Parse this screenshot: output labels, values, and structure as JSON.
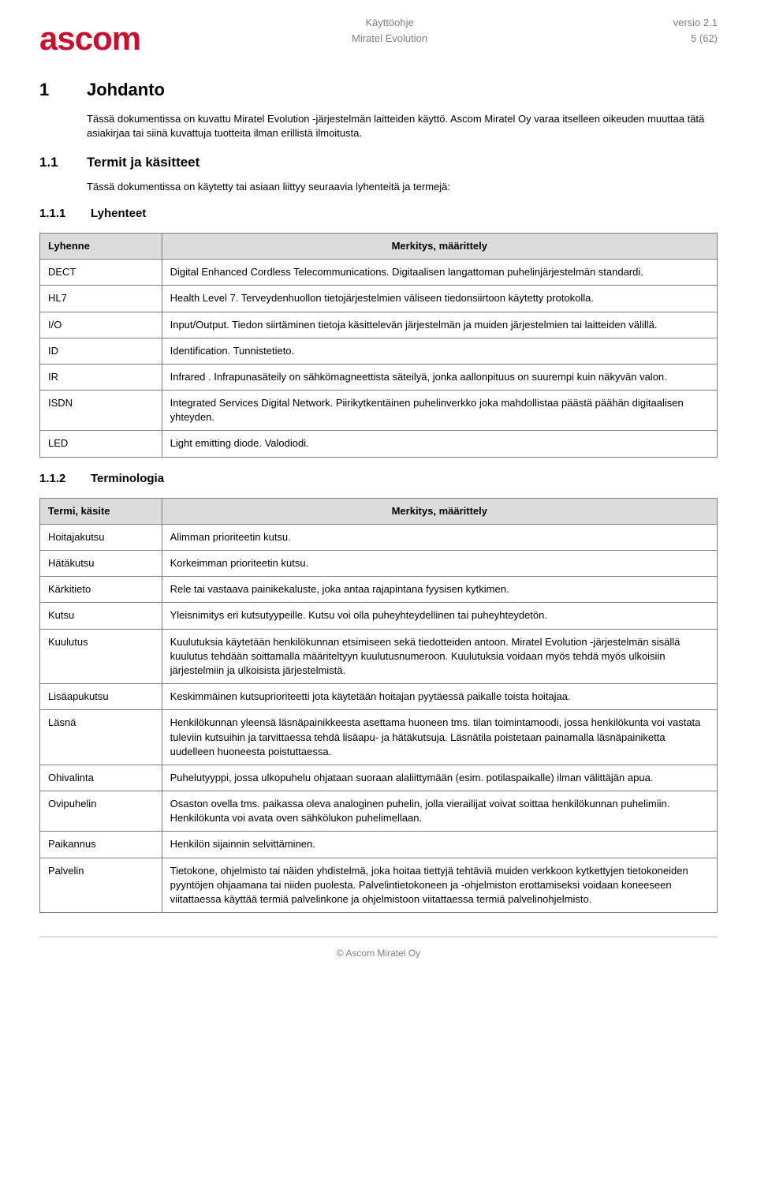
{
  "header": {
    "logo_text": "ascom",
    "doc_type": "Käyttöohje",
    "product": "Miratel Evolution",
    "version": "versio 2.1",
    "page_num": "5 (62)"
  },
  "s1": {
    "num": "1",
    "title": "Johdanto",
    "text": "Tässä dokumentissa on kuvattu Miratel Evolution -järjestelmän laitteiden käyttö. Ascom Miratel Oy varaa itselleen oikeuden muuttaa tätä asiakirjaa tai siinä kuvattuja tuotteita ilman erillistä ilmoitusta."
  },
  "s11": {
    "num": "1.1",
    "title": "Termit ja käsitteet",
    "text": "Tässä dokumentissa on käytetty tai asiaan liittyy seuraavia lyhenteitä ja termejä:"
  },
  "s111": {
    "num": "1.1.1",
    "title": "Lyhenteet"
  },
  "table1": {
    "col1": "Lyhenne",
    "col2": "Merkitys, määrittely",
    "rows": [
      {
        "a": "DECT",
        "b": "Digital Enhanced Cordless Telecommunications. Digitaalisen langattoman puhelinjärjestelmän standardi."
      },
      {
        "a": "HL7",
        "b": "Health Level 7. Terveydenhuollon tietojärjestelmien väliseen tiedonsiirtoon käytetty protokolla."
      },
      {
        "a": "I/O",
        "b": "Input/Output. Tiedon siirtäminen tietoja käsittelevän järjestelmän ja muiden järjestelmien tai laitteiden välillä."
      },
      {
        "a": "ID",
        "b": "Identification. Tunnistetieto."
      },
      {
        "a": "IR",
        "b": "Infrared . Infrapunasäteily on sähkömagneettista säteilyä, jonka aallonpituus on suurempi kuin näkyvän valon."
      },
      {
        "a": "ISDN",
        "b": "Integrated Services Digital Network. Piirikytkentäinen puhelinverkko joka mahdollistaa päästä päähän digitaalisen yhteyden."
      },
      {
        "a": "LED",
        "b": "Light emitting diode. Valodiodi."
      }
    ]
  },
  "s112": {
    "num": "1.1.2",
    "title": "Terminologia"
  },
  "table2": {
    "col1": "Termi, käsite",
    "col2": "Merkitys, määrittely",
    "rows": [
      {
        "a": "Hoitajakutsu",
        "b": "Alimman prioriteetin kutsu."
      },
      {
        "a": "Hätäkutsu",
        "b": "Korkeimman prioriteetin kutsu."
      },
      {
        "a": "Kärkitieto",
        "b": "Rele tai vastaava painikekaluste, joka antaa rajapintana fyysisen kytkimen."
      },
      {
        "a": "Kutsu",
        "b": "Yleisnimitys eri kutsutyypeille. Kutsu voi olla puheyhteydellinen tai puheyhteydetön."
      },
      {
        "a": "Kuulutus",
        "b": "Kuulutuksia käytetään henkilökunnan etsimiseen sekä tiedotteiden antoon. Miratel Evolution -järjestelmän sisällä kuulutus tehdään soittamalla määriteltyyn kuulutusnumeroon. Kuulutuksia voidaan myös tehdä myös ulkoisiin järjestelmiin ja ulkoisista järjestelmistä."
      },
      {
        "a": "Lisäapukutsu",
        "b": "Keskimmäinen kutsuprioriteetti jota käytetään hoitajan pyytäessä paikalle toista hoitajaa."
      },
      {
        "a": "Läsnä",
        "b": "Henkilökunnan yleensä läsnäpainikkeesta asettama huoneen tms. tilan toimintamoodi, jossa henkilökunta voi vastata tuleviin kutsuihin ja tarvittaessa tehdä lisäapu- ja hätäkutsuja. Läsnätila poistetaan painamalla läsnäpainiketta uudelleen huoneesta poistuttaessa."
      },
      {
        "a": "Ohivalinta",
        "b": "Puhelutyyppi, jossa ulkopuhelu ohjataan suoraan alaliittymään (esim. potilaspaikalle) ilman välittäjän apua."
      },
      {
        "a": "Ovipuhelin",
        "b": "Osaston ovella tms. paikassa oleva analoginen puhelin, jolla vierailijat voivat soittaa henkilökunnan puhelimiin. Henkilökunta voi avata oven sähkölukon puhelimellaan."
      },
      {
        "a": "Paikannus",
        "b": "Henkilön sijainnin selvittäminen."
      },
      {
        "a": "Palvelin",
        "b": "Tietokone, ohjelmisto tai näiden yhdistelmä, joka hoitaa tiettyjä tehtäviä muiden verkkoon kytkettyjen tietokoneiden pyyntöjen ohjaamana tai niiden puolesta. Palvelintietokoneen ja -ohjelmiston erottamiseksi voidaan koneeseen viitattaessa käyttää termiä palvelinkone ja ohjelmistoon viitattaessa termiä palvelinohjelmisto."
      }
    ]
  },
  "footer": {
    "copyright": "© Ascom Miratel Oy"
  }
}
